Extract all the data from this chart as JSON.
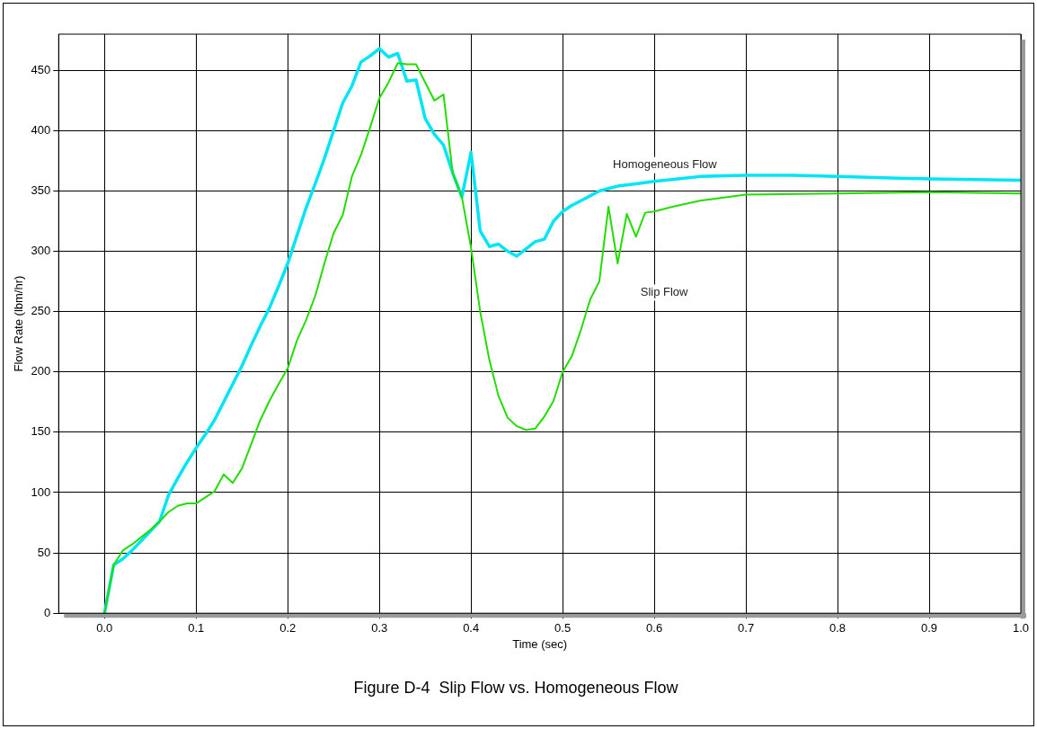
{
  "chart_data": {
    "type": "line",
    "title": "Figure D-4  Slip Flow vs. Homogeneous Flow",
    "xlabel": "Time (sec)",
    "ylabel": "Flow Rate (lbm/hr)",
    "xlim": [
      -0.05,
      1.0
    ],
    "ylim": [
      0,
      480
    ],
    "xticks": [
      {
        "value": 0,
        "label": "0.0"
      },
      {
        "value": 0.1,
        "label": "0.1"
      },
      {
        "value": 0.2,
        "label": "0.2"
      },
      {
        "value": 0.3,
        "label": "0.3"
      },
      {
        "value": 0.4,
        "label": "0.4"
      },
      {
        "value": 0.5,
        "label": "0.5"
      },
      {
        "value": 0.6,
        "label": "0.6"
      },
      {
        "value": 0.7,
        "label": "0.7"
      },
      {
        "value": 0.8,
        "label": "0.8"
      },
      {
        "value": 0.9,
        "label": "0.9"
      },
      {
        "value": 1.0,
        "label": "1.0"
      }
    ],
    "yticks": [
      0,
      50,
      100,
      150,
      200,
      250,
      300,
      350,
      400,
      450
    ],
    "grid": true,
    "legend": false,
    "marker": "none",
    "line_style": "solid",
    "series": [
      {
        "name": "Homogeneous Flow",
        "color": "#00e5f5",
        "x": [
          0,
          0.01,
          0.02,
          0.03,
          0.04,
          0.05,
          0.06,
          0.07,
          0.08,
          0.09,
          0.1,
          0.11,
          0.12,
          0.13,
          0.14,
          0.15,
          0.16,
          0.17,
          0.18,
          0.19,
          0.2,
          0.21,
          0.22,
          0.23,
          0.24,
          0.25,
          0.26,
          0.27,
          0.28,
          0.29,
          0.3,
          0.31,
          0.32,
          0.33,
          0.34,
          0.35,
          0.36,
          0.37,
          0.38,
          0.39,
          0.4,
          0.41,
          0.42,
          0.43,
          0.44,
          0.45,
          0.46,
          0.47,
          0.48,
          0.49,
          0.5,
          0.51,
          0.52,
          0.53,
          0.54,
          0.55,
          0.56,
          0.58,
          0.6,
          0.65,
          0.7,
          0.75,
          0.8,
          0.85,
          0.9,
          1.0
        ],
        "values": [
          0,
          40,
          45,
          52,
          60,
          68,
          76,
          98,
          112,
          125,
          137,
          148,
          160,
          175,
          190,
          205,
          222,
          238,
          253,
          271,
          290,
          313,
          336,
          356,
          377,
          400,
          423,
          437,
          457,
          462,
          468,
          461,
          464,
          441,
          442,
          410,
          397,
          388,
          365,
          345,
          382,
          317,
          304,
          306,
          300,
          296,
          302,
          308,
          310,
          325,
          333,
          338,
          342,
          346,
          350,
          352,
          354,
          356,
          358,
          362,
          363,
          363,
          362,
          361,
          360,
          359
        ]
      },
      {
        "name": "Slip Flow",
        "color": "#22dd00",
        "x": [
          0,
          0.01,
          0.02,
          0.03,
          0.04,
          0.05,
          0.06,
          0.07,
          0.08,
          0.09,
          0.1,
          0.11,
          0.12,
          0.13,
          0.14,
          0.15,
          0.16,
          0.17,
          0.18,
          0.19,
          0.2,
          0.21,
          0.22,
          0.23,
          0.24,
          0.25,
          0.26,
          0.27,
          0.28,
          0.29,
          0.3,
          0.31,
          0.32,
          0.33,
          0.34,
          0.35,
          0.36,
          0.37,
          0.38,
          0.39,
          0.4,
          0.41,
          0.42,
          0.43,
          0.44,
          0.45,
          0.46,
          0.47,
          0.48,
          0.49,
          0.5,
          0.51,
          0.52,
          0.53,
          0.54,
          0.55,
          0.56,
          0.57,
          0.58,
          0.59,
          0.6,
          0.62,
          0.65,
          0.7,
          0.8,
          0.9,
          1.0
        ],
        "values": [
          0,
          40,
          52,
          57,
          63,
          69,
          76,
          84,
          89,
          91,
          91,
          96,
          101,
          115,
          108,
          120,
          140,
          160,
          176,
          190,
          203,
          226,
          243,
          263,
          290,
          315,
          330,
          362,
          380,
          403,
          427,
          440,
          456,
          455,
          455,
          440,
          425,
          430,
          365,
          345,
          303,
          250,
          210,
          180,
          162,
          155,
          152,
          153,
          163,
          176,
          200,
          213,
          235,
          260,
          275,
          337,
          290,
          331,
          312,
          332,
          333,
          337,
          342,
          347,
          348,
          349,
          348
        ]
      }
    ]
  }
}
